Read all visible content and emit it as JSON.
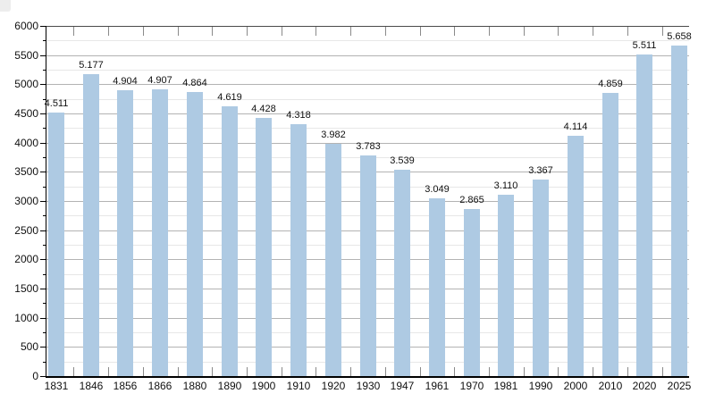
{
  "page": {
    "background": "#ffffff",
    "corner_artifact_color": "#ededed"
  },
  "chart_data": {
    "type": "bar",
    "title": "",
    "xlabel": "",
    "ylabel": "",
    "categories": [
      "1831",
      "1846",
      "1856",
      "1866",
      "1880",
      "1890",
      "1900",
      "1910",
      "1920",
      "1930",
      "1947",
      "1961",
      "1970",
      "1981",
      "1990",
      "2000",
      "2010",
      "2020",
      "2025"
    ],
    "values": [
      4511,
      5177,
      4904,
      4907,
      4864,
      4619,
      4428,
      4318,
      3982,
      3783,
      3539,
      3049,
      2865,
      3110,
      3367,
      4114,
      4859,
      5511,
      5658
    ],
    "value_labels": [
      "4.511",
      "5.177",
      "4.904",
      "4.907",
      "4.864",
      "4.619",
      "4.428",
      "4.318",
      "3.982",
      "3.783",
      "3.539",
      "3.049",
      "2.865",
      "3.110",
      "3.367",
      "4.114",
      "4.859",
      "5.511",
      "5.658"
    ],
    "ylim": [
      0,
      6000
    ],
    "y_major_step": 500,
    "y_minor_step": 250,
    "y_tick_labels": [
      "0",
      "500",
      "1000",
      "1500",
      "2000",
      "2500",
      "3000",
      "3500",
      "4000",
      "4500",
      "5000",
      "5500",
      "6000"
    ],
    "grid": true,
    "legend": "none",
    "colors": {
      "bar_fill": "#aecae3",
      "grid_major": "#b3b3b3",
      "grid_minor": "#e7e7e7",
      "axis": "#000000",
      "top_border": "#4a4a4a",
      "boundary_tick": "#8a8a8a",
      "text": "#111111"
    }
  }
}
